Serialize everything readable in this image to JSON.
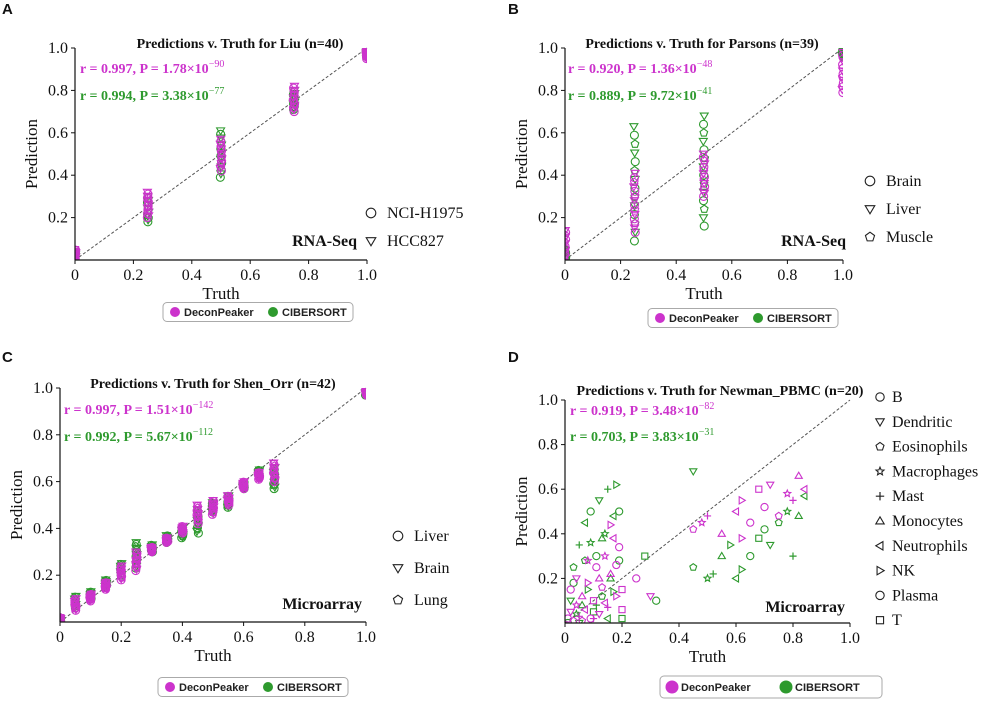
{
  "colors": {
    "decon": "#cc33cc",
    "ciber": "#2e9a2e",
    "axis": "#111111",
    "diag": "#555555"
  },
  "method_legend": [
    "DeconPeaker",
    "CIBERSORT"
  ],
  "chart_data": [
    {
      "type": "scatter",
      "panel": "A",
      "title": "Predictions v. Truth for Liu (n=40)",
      "xlabel": "Truth",
      "ylabel": "Prediction",
      "xlim": [
        0,
        1
      ],
      "ylim": [
        0,
        1
      ],
      "xticks": [
        "0",
        "0.2",
        "0.4",
        "0.6",
        "0.8",
        "1.0"
      ],
      "yticks": [
        "0.2",
        "0.4",
        "0.6",
        "0.8",
        "1.0"
      ],
      "stats": [
        {
          "series": "DeconPeaker",
          "r": "0.997",
          "p_mant": "1.78",
          "p_exp": "−90"
        },
        {
          "series": "CIBERSORT",
          "r": "0.994",
          "p_mant": "3.38",
          "p_exp": "−77"
        }
      ],
      "tag": "RNA-Seq",
      "legend": [
        {
          "label": "NCI-H1975",
          "marker": "circle"
        },
        {
          "label": "HCC827",
          "marker": "triangle-down"
        }
      ],
      "groups": [
        {
          "x": 0,
          "decon": [
            0.0,
            0.05
          ],
          "ciber": [
            0.0,
            0.03
          ]
        },
        {
          "x": 0.25,
          "decon": [
            0.2,
            0.32
          ],
          "ciber": [
            0.18,
            0.3
          ]
        },
        {
          "x": 0.5,
          "decon": [
            0.42,
            0.57
          ],
          "ciber": [
            0.39,
            0.61
          ]
        },
        {
          "x": 0.75,
          "decon": [
            0.7,
            0.82
          ],
          "ciber": [
            0.71,
            0.8
          ]
        },
        {
          "x": 1.0,
          "decon": [
            0.95,
            0.99
          ],
          "ciber": [
            0.96,
            0.99
          ]
        }
      ]
    },
    {
      "type": "scatter",
      "panel": "B",
      "title": "Predictions v. Truth for Parsons (n=39)",
      "xlabel": "Truth",
      "ylabel": "Prediction",
      "xlim": [
        0,
        1
      ],
      "ylim": [
        0,
        1
      ],
      "xticks": [
        "0",
        "0.2",
        "0.4",
        "0.6",
        "0.8",
        "1.0"
      ],
      "yticks": [
        "0.2",
        "0.4",
        "0.6",
        "0.8",
        "1.0"
      ],
      "stats": [
        {
          "series": "DeconPeaker",
          "r": "0.920",
          "p_mant": "1.36",
          "p_exp": "−48"
        },
        {
          "series": "CIBERSORT",
          "r": "0.889",
          "p_mant": "9.72",
          "p_exp": "−41"
        }
      ],
      "tag": "RNA-Seq",
      "legend": [
        {
          "label": "Brain",
          "marker": "circle"
        },
        {
          "label": "Liver",
          "marker": "triangle-down"
        },
        {
          "label": "Muscle",
          "marker": "pentagon"
        }
      ],
      "groups": [
        {
          "x": 0,
          "decon": [
            0.0,
            0.14
          ],
          "ciber": [
            0.0,
            0.05
          ]
        },
        {
          "x": 0.25,
          "decon": [
            0.13,
            0.41
          ],
          "ciber": [
            0.09,
            0.63
          ]
        },
        {
          "x": 0.5,
          "decon": [
            0.3,
            0.5
          ],
          "ciber": [
            0.16,
            0.68
          ]
        },
        {
          "x": 1.0,
          "decon": [
            0.79,
            0.98
          ],
          "ciber": [
            0.96,
            0.99
          ]
        }
      ]
    },
    {
      "type": "scatter",
      "panel": "C",
      "title": "Predictions v. Truth for Shen_Orr (n=42)",
      "xlabel": "Truth",
      "ylabel": "Prediction",
      "xlim": [
        0,
        1
      ],
      "ylim": [
        0,
        1
      ],
      "xticks": [
        "0",
        "0.2",
        "0.4",
        "0.6",
        "0.8",
        "1.0"
      ],
      "yticks": [
        "0.2",
        "0.4",
        "0.6",
        "0.8",
        "1.0"
      ],
      "stats": [
        {
          "series": "DeconPeaker",
          "r": "0.997",
          "p_mant": "1.51",
          "p_exp": "−142"
        },
        {
          "series": "CIBERSORT",
          "r": "0.992",
          "p_mant": "5.67",
          "p_exp": "−112"
        }
      ],
      "tag": "Microarray",
      "legend": [
        {
          "label": "Liver",
          "marker": "circle"
        },
        {
          "label": "Brain",
          "marker": "triangle-down"
        },
        {
          "label": "Lung",
          "marker": "pentagon"
        }
      ],
      "groups": [
        {
          "x": 0,
          "decon": [
            0.0,
            0.02
          ],
          "ciber": [
            0.0,
            0.02
          ]
        },
        {
          "x": 0.05,
          "decon": [
            0.05,
            0.1
          ],
          "ciber": [
            0.06,
            0.11
          ]
        },
        {
          "x": 0.1,
          "decon": [
            0.09,
            0.12
          ],
          "ciber": [
            0.1,
            0.13
          ]
        },
        {
          "x": 0.15,
          "decon": [
            0.14,
            0.17
          ],
          "ciber": [
            0.15,
            0.18
          ]
        },
        {
          "x": 0.2,
          "decon": [
            0.18,
            0.24
          ],
          "ciber": [
            0.2,
            0.25
          ]
        },
        {
          "x": 0.25,
          "decon": [
            0.22,
            0.3
          ],
          "ciber": [
            0.23,
            0.34
          ]
        },
        {
          "x": 0.3,
          "decon": [
            0.3,
            0.32
          ],
          "ciber": [
            0.3,
            0.33
          ]
        },
        {
          "x": 0.35,
          "decon": [
            0.34,
            0.36
          ],
          "ciber": [
            0.34,
            0.37
          ]
        },
        {
          "x": 0.4,
          "decon": [
            0.38,
            0.41
          ],
          "ciber": [
            0.36,
            0.4
          ]
        },
        {
          "x": 0.45,
          "decon": [
            0.42,
            0.5
          ],
          "ciber": [
            0.38,
            0.48
          ]
        },
        {
          "x": 0.5,
          "decon": [
            0.46,
            0.52
          ],
          "ciber": [
            0.47,
            0.51
          ]
        },
        {
          "x": 0.55,
          "decon": [
            0.5,
            0.54
          ],
          "ciber": [
            0.49,
            0.54
          ]
        },
        {
          "x": 0.6,
          "decon": [
            0.57,
            0.6
          ],
          "ciber": [
            0.57,
            0.59
          ]
        },
        {
          "x": 0.65,
          "decon": [
            0.61,
            0.64
          ],
          "ciber": [
            0.62,
            0.65
          ]
        },
        {
          "x": 0.7,
          "decon": [
            0.6,
            0.68
          ],
          "ciber": [
            0.57,
            0.66
          ]
        },
        {
          "x": 1.0,
          "decon": [
            0.97,
            0.99
          ],
          "ciber": [
            0.97,
            0.99
          ]
        }
      ]
    },
    {
      "type": "scatter",
      "panel": "D",
      "title": "Predictions v. Truth for Newman_PBMC (n=20)",
      "xlabel": "Truth",
      "ylabel": "Prediction",
      "xlim": [
        0,
        1
      ],
      "ylim": [
        0,
        1
      ],
      "xticks": [
        "0",
        "0.2",
        "0.4",
        "0.6",
        "0.8",
        "1.0"
      ],
      "yticks": [
        "0.2",
        "0.4",
        "0.6",
        "0.8",
        "1.0"
      ],
      "stats": [
        {
          "series": "DeconPeaker",
          "r": "0.919",
          "p_mant": "3.48",
          "p_exp": "−82"
        },
        {
          "series": "CIBERSORT",
          "r": "0.703",
          "p_mant": "3.83",
          "p_exp": "−31"
        }
      ],
      "tag": "Microarray",
      "legend": [
        {
          "label": "B",
          "marker": "circle"
        },
        {
          "label": "Dendritic",
          "marker": "triangle-down"
        },
        {
          "label": "Eosinophils",
          "marker": "pentagon"
        },
        {
          "label": "Macrophages",
          "marker": "star"
        },
        {
          "label": "Mast",
          "marker": "plus"
        },
        {
          "label": "Monocytes",
          "marker": "triangle-up"
        },
        {
          "label": "Neutrophils",
          "marker": "triangle-left"
        },
        {
          "label": "NK",
          "marker": "triangle-right"
        },
        {
          "label": "Plasma",
          "marker": "circle"
        },
        {
          "label": "T",
          "marker": "square"
        }
      ],
      "points": {
        "decon": [
          [
            0.01,
            0.02
          ],
          [
            0.02,
            0.05
          ],
          [
            0.03,
            0.01
          ],
          [
            0.04,
            0.08
          ],
          [
            0.05,
            0.03
          ],
          [
            0.06,
            0.12
          ],
          [
            0.07,
            0.06
          ],
          [
            0.08,
            0.18
          ],
          [
            0.09,
            0.02
          ],
          [
            0.1,
            0.1
          ],
          [
            0.11,
            0.25
          ],
          [
            0.12,
            0.04
          ],
          [
            0.13,
            0.16
          ],
          [
            0.14,
            0.3
          ],
          [
            0.15,
            0.07
          ],
          [
            0.16,
            0.22
          ],
          [
            0.17,
            0.38
          ],
          [
            0.18,
            0.12
          ],
          [
            0.19,
            0.34
          ],
          [
            0.2,
            0.06
          ],
          [
            0.02,
            0.15
          ],
          [
            0.04,
            0.2
          ],
          [
            0.06,
            0.01
          ],
          [
            0.08,
            0.28
          ],
          [
            0.1,
            0.02
          ],
          [
            0.12,
            0.2
          ],
          [
            0.14,
            0.09
          ],
          [
            0.16,
            0.44
          ],
          [
            0.18,
            0.26
          ],
          [
            0.2,
            0.15
          ],
          [
            0.25,
            0.2
          ],
          [
            0.3,
            0.12
          ],
          [
            0.45,
            0.42
          ],
          [
            0.48,
            0.45
          ],
          [
            0.5,
            0.48
          ],
          [
            0.55,
            0.4
          ],
          [
            0.6,
            0.5
          ],
          [
            0.62,
            0.55
          ],
          [
            0.65,
            0.45
          ],
          [
            0.68,
            0.6
          ],
          [
            0.7,
            0.52
          ],
          [
            0.72,
            0.62
          ],
          [
            0.75,
            0.48
          ],
          [
            0.78,
            0.58
          ],
          [
            0.8,
            0.55
          ],
          [
            0.82,
            0.66
          ],
          [
            0.84,
            0.6
          ],
          [
            0.62,
            0.38
          ]
        ],
        "ciber": [
          [
            0.01,
            0.0
          ],
          [
            0.02,
            0.1
          ],
          [
            0.03,
            0.25
          ],
          [
            0.04,
            0.04
          ],
          [
            0.05,
            0.35
          ],
          [
            0.06,
            0.08
          ],
          [
            0.07,
            0.45
          ],
          [
            0.08,
            0.15
          ],
          [
            0.09,
            0.5
          ],
          [
            0.1,
            0.05
          ],
          [
            0.11,
            0.3
          ],
          [
            0.12,
            0.55
          ],
          [
            0.13,
            0.12
          ],
          [
            0.14,
            0.4
          ],
          [
            0.15,
            0.6
          ],
          [
            0.16,
            0.2
          ],
          [
            0.17,
            0.48
          ],
          [
            0.18,
            0.62
          ],
          [
            0.19,
            0.28
          ],
          [
            0.2,
            0.02
          ],
          [
            0.03,
            0.18
          ],
          [
            0.05,
            0.0
          ],
          [
            0.07,
            0.28
          ],
          [
            0.09,
            0.36
          ],
          [
            0.11,
            0.08
          ],
          [
            0.13,
            0.38
          ],
          [
            0.15,
            0.02
          ],
          [
            0.17,
            0.14
          ],
          [
            0.19,
            0.5
          ],
          [
            0.28,
            0.3
          ],
          [
            0.32,
            0.1
          ],
          [
            0.45,
            0.68
          ],
          [
            0.45,
            0.25
          ],
          [
            0.5,
            0.2
          ],
          [
            0.52,
            0.22
          ],
          [
            0.55,
            0.3
          ],
          [
            0.6,
            0.2
          ],
          [
            0.62,
            0.24
          ],
          [
            0.65,
            0.3
          ],
          [
            0.68,
            0.38
          ],
          [
            0.7,
            0.42
          ],
          [
            0.72,
            0.35
          ],
          [
            0.75,
            0.45
          ],
          [
            0.78,
            0.5
          ],
          [
            0.8,
            0.3
          ],
          [
            0.82,
            0.48
          ],
          [
            0.84,
            0.57
          ],
          [
            0.58,
            0.35
          ]
        ]
      }
    }
  ]
}
